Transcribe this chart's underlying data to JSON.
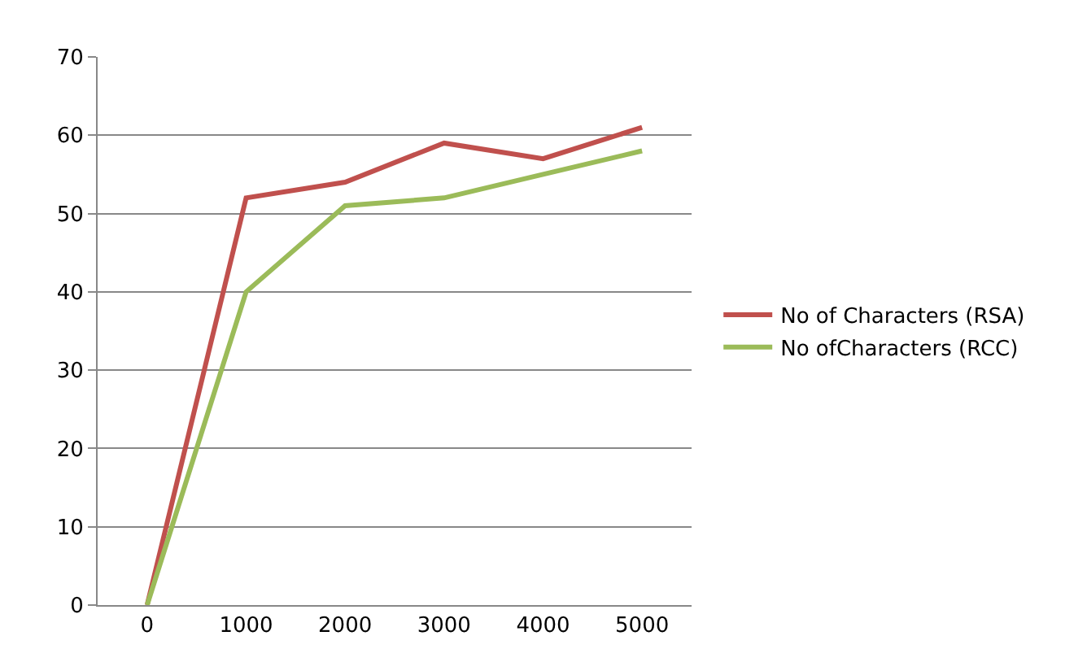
{
  "chart_data": {
    "type": "line",
    "categories": [
      "0",
      "1000",
      "2000",
      "3000",
      "4000",
      "5000"
    ],
    "series": [
      {
        "name": "No of Characters (RSA)",
        "color": "#c0504d",
        "values": [
          0,
          52,
          54,
          59,
          57,
          61
        ]
      },
      {
        "name": "No ofCharacters (RCC)",
        "color": "#9bbb59",
        "values": [
          0,
          40,
          51,
          52,
          55,
          58
        ]
      }
    ],
    "ylim": [
      0,
      70
    ],
    "yticks": [
      0,
      10,
      20,
      30,
      40,
      50,
      60,
      70
    ],
    "grid": "y",
    "legend": "right",
    "marker": "none",
    "line_style": "solid"
  }
}
